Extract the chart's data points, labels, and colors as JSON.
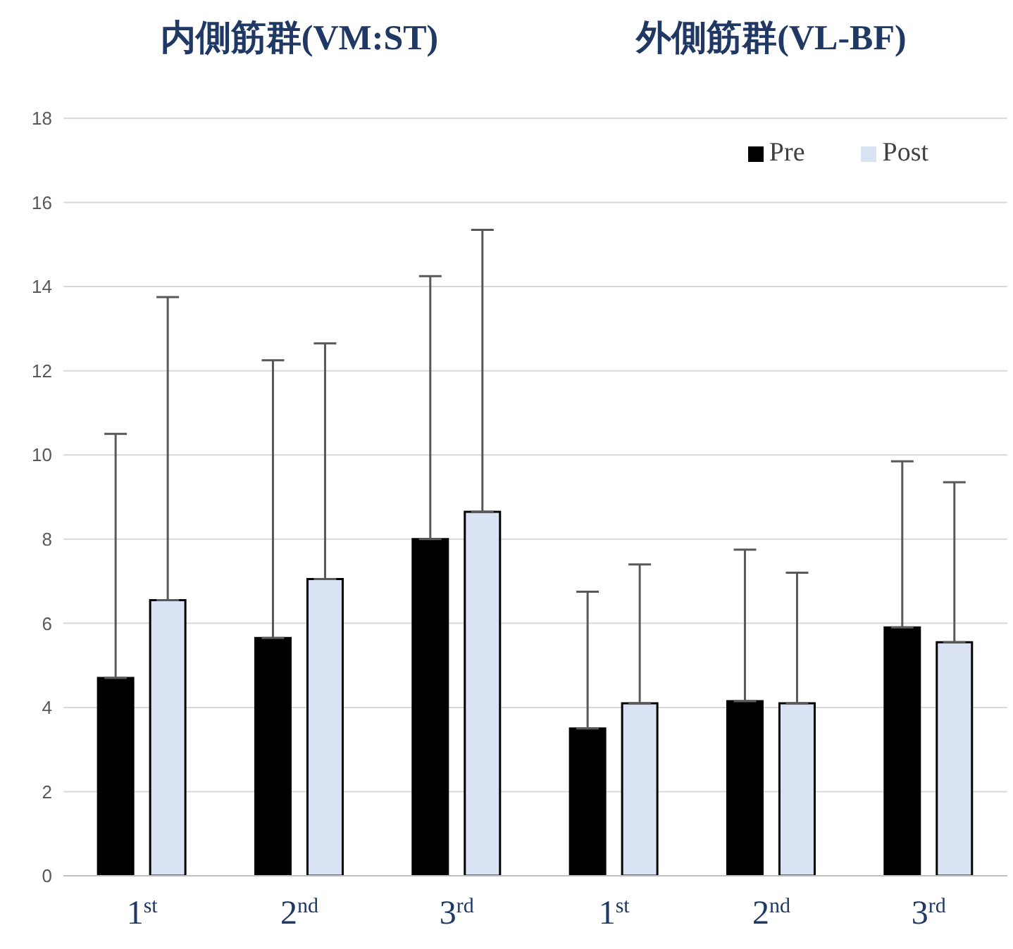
{
  "chart_data": {
    "type": "bar",
    "annotations": [
      "内側筋群(VM:ST)",
      "外側筋群(VL-BF)"
    ],
    "categories": [
      "1$^{st}$",
      "2$^{nd}$",
      "3$^{rd}$",
      "1$^{st}$",
      "2$^{nd}$",
      "3$^{rd}$"
    ],
    "series": [
      {
        "name": "Pre",
        "color": "#000000",
        "values": [
          4.7,
          5.65,
          8.0,
          3.5,
          4.15,
          5.9
        ],
        "errors": [
          [
            4.7,
            10.5
          ],
          [
            5.65,
            12.25
          ],
          [
            8.0,
            14.25
          ],
          [
            3.5,
            6.75
          ],
          [
            4.15,
            7.75
          ],
          [
            5.9,
            9.85
          ]
        ]
      },
      {
        "name": "Post",
        "color": "#dae3f3",
        "values": [
          6.55,
          7.05,
          8.65,
          4.1,
          4.1,
          5.55
        ],
        "errors": [
          [
            6.55,
            13.75
          ],
          [
            7.05,
            12.65
          ],
          [
            8.65,
            15.35
          ],
          [
            4.1,
            7.4
          ],
          [
            4.1,
            7.2
          ],
          [
            5.55,
            9.35
          ]
        ]
      }
    ],
    "ylim": [
      0,
      18
    ],
    "yticks": [
      0,
      2,
      4,
      6,
      8,
      10,
      12,
      14,
      16,
      18
    ],
    "grid": "y",
    "legend": "top right"
  }
}
